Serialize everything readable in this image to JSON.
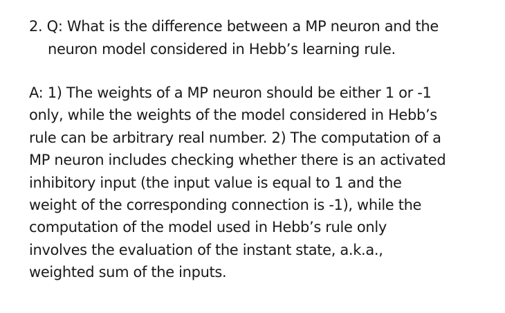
{
  "question": {
    "lines": [
      "2. Q: What is the difference between a MP neuron and the",
      "neuron model considered in Hebb’s learning rule."
    ]
  },
  "answer": {
    "lines": [
      "A: 1) The weights of a MP neuron should be either 1 or -1",
      "only, while the weights of the model considered in Hebb’s",
      "rule can be arbitrary real number. 2) The computation of a",
      "MP neuron includes checking whether there is an activated",
      "inhibitory input (the input value is equal to 1 and the",
      "weight of the corresponding connection is -1), while the",
      "computation of the model used in Hebb’s rule only",
      "involves the evaluation of the instant state, a.k.a.,",
      "weighted sum of the inputs."
    ]
  }
}
